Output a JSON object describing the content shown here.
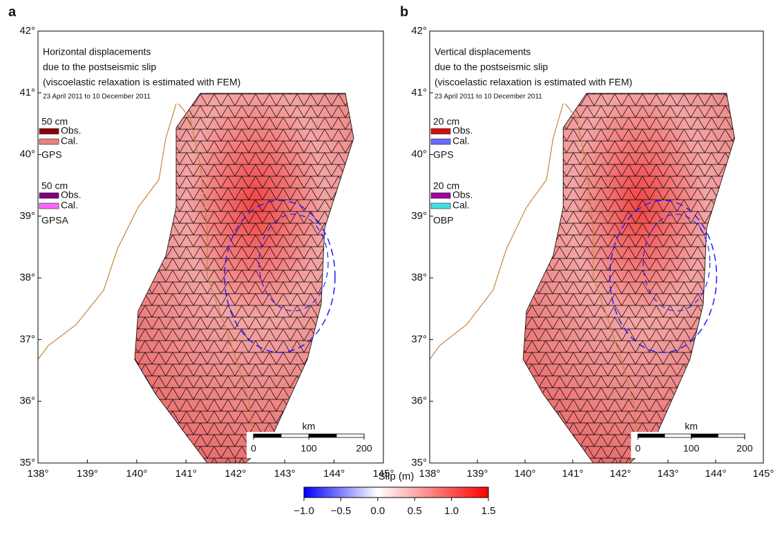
{
  "colorbar": {
    "title": "Slip (m)",
    "lim": [
      -1.0,
      1.5
    ],
    "ticks": [
      {
        "value": -1.0,
        "label": "−1.0"
      },
      {
        "value": -0.5,
        "label": "−0.5"
      },
      {
        "value": 0.0,
        "label": "0.0"
      },
      0.5,
      {
        "value": 1.0,
        "label": "1.0"
      },
      1.5
    ]
  },
  "panels": [
    {
      "label": "a",
      "xlim": [
        138,
        145
      ],
      "ylim": [
        35,
        42
      ],
      "xticks": [
        {
          "value": 138,
          "label": "138°"
        },
        {
          "value": 139,
          "label": "139°"
        },
        {
          "value": 140,
          "label": "140°"
        },
        {
          "value": 141,
          "label": "141°"
        },
        {
          "value": 142,
          "label": "142°"
        },
        {
          "value": 143,
          "label": "143°"
        },
        {
          "value": 144,
          "label": "144°"
        },
        {
          "value": 145,
          "label": "145°"
        }
      ],
      "yticks": [
        {
          "value": 35,
          "label": "35°"
        },
        {
          "value": 36,
          "label": "36°"
        },
        {
          "value": 37,
          "label": "37°"
        },
        {
          "value": 38,
          "label": "38°"
        },
        {
          "value": 39,
          "label": "39°"
        },
        {
          "value": 40,
          "label": "40°"
        },
        {
          "value": 41,
          "label": "41°"
        },
        {
          "value": 42,
          "label": "42°"
        }
      ],
      "annotations": [
        "Horizontal displacements",
        "due to the postseismic slip",
        "(viscoelastic relaxation is estimated with FEM)"
      ],
      "period": "23 April 2011 to 10 December 2011",
      "legend": [
        "50 cm",
        "Obs.",
        "Cal.",
        "GPS",
        "50 cm",
        "Obs.",
        "Cal.",
        "GPSA"
      ],
      "scale": {
        "unit": "km",
        "lim": [
          0,
          200
        ],
        "ticks": [
          0,
          100,
          200
        ]
      }
    },
    {
      "label": "b",
      "xlim": [
        138,
        145
      ],
      "ylim": [
        35,
        42
      ],
      "xticks": [
        {
          "value": 138,
          "label": "138°"
        },
        {
          "value": 139,
          "label": "139°"
        },
        {
          "value": 140,
          "label": "140°"
        },
        {
          "value": 141,
          "label": "141°"
        },
        {
          "value": 142,
          "label": "142°"
        },
        {
          "value": 143,
          "label": "143°"
        },
        {
          "value": 144,
          "label": "144°"
        },
        {
          "value": 145,
          "label": "145°"
        }
      ],
      "yticks": [
        {
          "value": 35,
          "label": "35°"
        },
        {
          "value": 36,
          "label": "36°"
        },
        {
          "value": 37,
          "label": "37°"
        },
        {
          "value": 38,
          "label": "38°"
        },
        {
          "value": 39,
          "label": "39°"
        },
        {
          "value": 40,
          "label": "40°"
        },
        {
          "value": 41,
          "label": "41°"
        },
        {
          "value": 42,
          "label": "42°"
        }
      ],
      "annotations": [
        "Vertical displacements",
        "due to the postseismic slip",
        "(viscoelastic relaxation is estimated with FEM)"
      ],
      "period": "23 April 2011 to 10 December 2011",
      "legend": [
        "20 cm",
        "Obs.",
        "Cal.",
        "GPS",
        "20 cm",
        "Obs.",
        "Cal.",
        "OBP"
      ],
      "scale": {
        "unit": "km",
        "lim": [
          0,
          200
        ],
        "ticks": [
          0,
          100,
          200
        ]
      }
    }
  ]
}
